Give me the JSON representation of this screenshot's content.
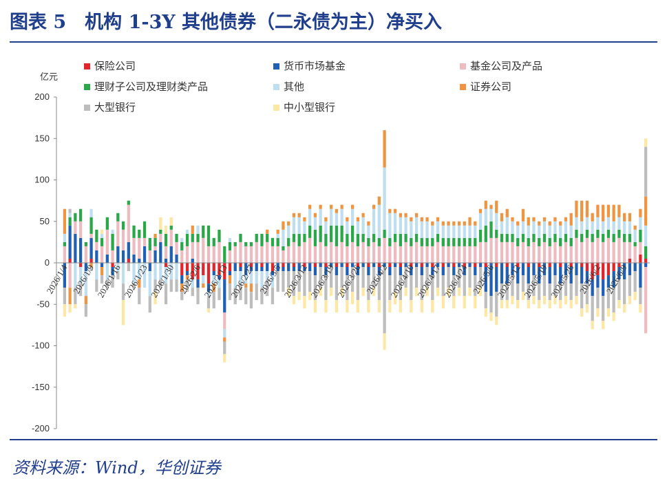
{
  "header": {
    "title": "图表 5　机构 1-3Y 其他债券（二永债为主）净买入"
  },
  "footer": {
    "source": "资料来源：Wind，华创证券"
  },
  "chart_data": {
    "type": "bar",
    "stacked": true,
    "unit_label": "亿元",
    "ylim": [
      -200,
      200
    ],
    "yticks": [
      -200,
      -150,
      -100,
      -50,
      0,
      50,
      100,
      150,
      200
    ],
    "grid": false,
    "legend_position": "top",
    "x_tick_labels": [
      "2026/1/4",
      "2026/1/9",
      "2026/1/16",
      "2026/1/23",
      "2026/1/30",
      "2026/2/6",
      "2026/2/13",
      "2026/2/27",
      "2026/3/5",
      "2026/3/12",
      "2026/3/19",
      "2026/3/26",
      "2026/4/2",
      "2026/4/10",
      "2026/4/17",
      "2026/4/24",
      "2026/5/6",
      "2026/5/12",
      "2026/5/19",
      "2026/5/26",
      "2026/6/2",
      "2026/6/9"
    ],
    "x_tick_index": [
      0,
      5,
      10,
      15,
      20,
      25,
      30,
      35,
      40,
      45,
      50,
      55,
      60,
      65,
      70,
      75,
      80,
      85,
      90,
      95,
      100,
      105
    ],
    "num_days": 110,
    "series": [
      {
        "name": "保险公司",
        "color": "#e2252b"
      },
      {
        "name": "货币市场基金",
        "color": "#1f5fb4"
      },
      {
        "name": "基金公司及产品",
        "color": "#eebcc0"
      },
      {
        "name": "理财子公司及理财类产品",
        "color": "#2aa748"
      },
      {
        "name": "其他",
        "color": "#bfdff0"
      },
      {
        "name": "证券公司",
        "color": "#ef9440"
      },
      {
        "name": "大型银行",
        "color": "#bdbdbd"
      },
      {
        "name": "中小型银行",
        "color": "#fde7a4"
      }
    ],
    "series_values_note": "values per day in 亿元, order follows series[] above",
    "values": [
      [
        0,
        -30,
        20,
        5,
        10,
        30,
        -20,
        -15
      ],
      [
        5,
        40,
        -30,
        10,
        5,
        -20,
        5,
        -10
      ],
      [
        0,
        35,
        15,
        10,
        -30,
        0,
        -20,
        -5
      ],
      [
        -5,
        30,
        20,
        15,
        -20,
        0,
        -15,
        0
      ],
      [
        0,
        -10,
        20,
        5,
        -30,
        -10,
        -15,
        0
      ],
      [
        5,
        25,
        5,
        20,
        10,
        -5,
        -5,
        0
      ],
      [
        0,
        15,
        10,
        15,
        -20,
        0,
        -15,
        0
      ],
      [
        0,
        -5,
        20,
        10,
        5,
        -10,
        -10,
        5
      ],
      [
        0,
        10,
        30,
        15,
        -20,
        0,
        -10,
        0
      ],
      [
        -5,
        -10,
        15,
        20,
        5,
        0,
        -15,
        0
      ],
      [
        0,
        20,
        30,
        10,
        -10,
        0,
        -10,
        0
      ],
      [
        0,
        15,
        25,
        10,
        -25,
        0,
        -20,
        -30
      ],
      [
        5,
        20,
        45,
        5,
        0,
        0,
        -10,
        0
      ],
      [
        0,
        10,
        20,
        15,
        -25,
        0,
        -5,
        0
      ],
      [
        0,
        5,
        25,
        10,
        -20,
        -10,
        -20,
        0
      ],
      [
        0,
        20,
        10,
        20,
        -30,
        0,
        0,
        0
      ],
      [
        0,
        -10,
        15,
        15,
        -30,
        0,
        -20,
        0
      ],
      [
        0,
        15,
        5,
        10,
        -20,
        5,
        -15,
        -15
      ],
      [
        0,
        25,
        10,
        5,
        -20,
        0,
        -10,
        15
      ],
      [
        -5,
        5,
        15,
        15,
        -20,
        0,
        -25,
        10
      ],
      [
        0,
        20,
        20,
        5,
        -20,
        0,
        -15,
        10
      ],
      [
        0,
        10,
        15,
        10,
        -20,
        0,
        -15,
        0
      ],
      [
        -15,
        -10,
        15,
        10,
        5,
        -10,
        -10,
        0
      ],
      [
        -10,
        -5,
        20,
        15,
        5,
        -5,
        -15,
        0
      ],
      [
        -20,
        5,
        20,
        10,
        -10,
        10,
        -10,
        0
      ],
      [
        -20,
        -10,
        25,
        10,
        10,
        0,
        -20,
        0
      ],
      [
        -15,
        0,
        30,
        15,
        -10,
        -5,
        0,
        0
      ],
      [
        -25,
        -10,
        20,
        25,
        -5,
        0,
        -15,
        -5
      ],
      [
        -10,
        -5,
        20,
        10,
        -10,
        -10,
        -20,
        0
      ],
      [
        -15,
        -5,
        25,
        15,
        -10,
        0,
        -15,
        0
      ],
      [
        -20,
        -40,
        -20,
        20,
        -10,
        -5,
        -15,
        -10
      ],
      [
        -10,
        -5,
        15,
        10,
        5,
        -10,
        -20,
        0
      ],
      [
        0,
        -10,
        20,
        5,
        -20,
        0,
        -20,
        0
      ],
      [
        -5,
        -5,
        25,
        10,
        -15,
        0,
        -20,
        0
      ],
      [
        0,
        -15,
        20,
        5,
        -10,
        -5,
        -20,
        0
      ],
      [
        -5,
        -5,
        20,
        5,
        -15,
        -10,
        -20,
        0
      ],
      [
        0,
        -10,
        25,
        10,
        -15,
        0,
        -20,
        0
      ],
      [
        -5,
        -5,
        20,
        15,
        -20,
        0,
        -20,
        0
      ],
      [
        0,
        -10,
        25,
        10,
        -10,
        5,
        -20,
        0
      ],
      [
        -10,
        -5,
        20,
        10,
        -15,
        0,
        -20,
        0
      ],
      [
        0,
        -10,
        20,
        10,
        5,
        5,
        -25,
        0
      ],
      [
        -5,
        -5,
        15,
        5,
        20,
        10,
        -25,
        0
      ],
      [
        0,
        -10,
        20,
        10,
        15,
        5,
        -20,
        -10
      ],
      [
        -5,
        -5,
        25,
        10,
        20,
        5,
        -30,
        -10
      ],
      [
        0,
        -10,
        20,
        15,
        20,
        5,
        -25,
        -10
      ],
      [
        -5,
        -5,
        25,
        10,
        15,
        5,
        -30,
        -15
      ],
      [
        0,
        -10,
        30,
        15,
        20,
        5,
        -25,
        -10
      ],
      [
        -5,
        -10,
        20,
        20,
        15,
        5,
        -30,
        -15
      ],
      [
        0,
        -5,
        25,
        20,
        20,
        5,
        -25,
        -10
      ],
      [
        -5,
        -10,
        20,
        15,
        15,
        5,
        -30,
        -15
      ],
      [
        0,
        -5,
        25,
        20,
        20,
        5,
        -25,
        -10
      ],
      [
        -5,
        -10,
        20,
        25,
        15,
        5,
        -30,
        -15
      ],
      [
        0,
        -5,
        25,
        20,
        20,
        5,
        -25,
        -10
      ],
      [
        -5,
        -10,
        20,
        15,
        15,
        5,
        -30,
        -15
      ],
      [
        0,
        -5,
        25,
        20,
        20,
        5,
        -30,
        -15
      ],
      [
        -5,
        -10,
        20,
        15,
        15,
        5,
        -30,
        -15
      ],
      [
        0,
        -5,
        25,
        10,
        20,
        5,
        -25,
        -10
      ],
      [
        -5,
        -10,
        20,
        10,
        15,
        5,
        -30,
        -15
      ],
      [
        0,
        -5,
        25,
        10,
        30,
        5,
        -25,
        -10
      ],
      [
        -5,
        -10,
        20,
        10,
        40,
        10,
        -30,
        -15
      ],
      [
        0,
        -5,
        30,
        10,
        75,
        45,
        -80,
        -20
      ],
      [
        -5,
        -10,
        20,
        10,
        30,
        5,
        -30,
        -15
      ],
      [
        0,
        -5,
        25,
        10,
        25,
        5,
        -30,
        -15
      ],
      [
        -5,
        -10,
        20,
        15,
        20,
        5,
        -30,
        -15
      ],
      [
        0,
        -5,
        25,
        10,
        20,
        5,
        -25,
        -10
      ],
      [
        -5,
        -10,
        20,
        10,
        20,
        5,
        -30,
        -15
      ],
      [
        0,
        -5,
        25,
        10,
        20,
        5,
        -25,
        -10
      ],
      [
        -5,
        -10,
        20,
        10,
        20,
        5,
        -30,
        -15
      ],
      [
        0,
        -5,
        20,
        10,
        20,
        5,
        -25,
        -10
      ],
      [
        -5,
        -10,
        20,
        10,
        15,
        5,
        -30,
        -15
      ],
      [
        0,
        -5,
        25,
        10,
        15,
        5,
        -25,
        -10
      ],
      [
        -5,
        -10,
        20,
        10,
        15,
        5,
        -25,
        -15
      ],
      [
        0,
        -5,
        20,
        10,
        15,
        5,
        -25,
        -10
      ],
      [
        -5,
        -10,
        20,
        10,
        15,
        5,
        -25,
        -15
      ],
      [
        0,
        -5,
        20,
        10,
        15,
        5,
        -25,
        -10
      ],
      [
        -5,
        -10,
        20,
        10,
        15,
        5,
        -25,
        -15
      ],
      [
        0,
        -5,
        20,
        10,
        15,
        10,
        -25,
        -10
      ],
      [
        -5,
        -10,
        20,
        10,
        15,
        5,
        -25,
        -15
      ],
      [
        0,
        -5,
        25,
        15,
        20,
        5,
        -25,
        -10
      ],
      [
        -5,
        -30,
        25,
        20,
        20,
        10,
        -20,
        -10
      ],
      [
        0,
        -40,
        30,
        20,
        15,
        5,
        -20,
        -10
      ],
      [
        -5,
        -30,
        30,
        10,
        20,
        15,
        -30,
        -10
      ],
      [
        0,
        -25,
        25,
        10,
        15,
        10,
        -20,
        -10
      ],
      [
        -5,
        -20,
        25,
        10,
        20,
        10,
        -20,
        -10
      ],
      [
        0,
        -15,
        25,
        10,
        15,
        5,
        -25,
        -10
      ],
      [
        -5,
        -20,
        20,
        10,
        15,
        5,
        -20,
        -10
      ],
      [
        0,
        -15,
        25,
        10,
        15,
        15,
        -20,
        -10
      ],
      [
        -5,
        -20,
        20,
        10,
        15,
        10,
        -20,
        -10
      ],
      [
        0,
        -15,
        25,
        10,
        15,
        5,
        -25,
        -10
      ],
      [
        -5,
        -20,
        20,
        10,
        15,
        5,
        -20,
        -10
      ],
      [
        0,
        -15,
        25,
        10,
        15,
        5,
        -25,
        -10
      ],
      [
        -5,
        -20,
        20,
        10,
        15,
        5,
        -20,
        -10
      ],
      [
        0,
        -15,
        25,
        10,
        15,
        5,
        -25,
        -10
      ],
      [
        -5,
        -20,
        20,
        10,
        15,
        5,
        -20,
        -10
      ],
      [
        0,
        -15,
        25,
        10,
        15,
        5,
        -25,
        -10
      ],
      [
        -5,
        -20,
        20,
        10,
        15,
        15,
        -20,
        -10
      ],
      [
        0,
        -15,
        30,
        10,
        15,
        20,
        -25,
        -10
      ],
      [
        -5,
        -20,
        25,
        10,
        15,
        25,
        -30,
        -10
      ],
      [
        -10,
        -15,
        30,
        10,
        15,
        20,
        -25,
        -10
      ],
      [
        -20,
        -20,
        25,
        10,
        15,
        10,
        -30,
        -10
      ],
      [
        -15,
        -15,
        30,
        10,
        15,
        15,
        -25,
        -10
      ],
      [
        -20,
        -20,
        25,
        10,
        15,
        20,
        -30,
        -10
      ],
      [
        -15,
        -15,
        30,
        10,
        15,
        15,
        -25,
        -10
      ],
      [
        -10,
        -20,
        25,
        10,
        15,
        20,
        -30,
        -10
      ],
      [
        -5,
        -15,
        30,
        10,
        15,
        15,
        -25,
        -10
      ],
      [
        0,
        -20,
        25,
        10,
        15,
        10,
        -30,
        -10
      ],
      [
        5,
        -15,
        20,
        10,
        15,
        10,
        -25,
        -10
      ],
      [
        0,
        -10,
        20,
        5,
        15,
        5,
        -25,
        -10
      ],
      [
        10,
        -30,
        15,
        15,
        15,
        10,
        -20,
        -10
      ],
      [
        5,
        -5,
        -80,
        15,
        25,
        35,
        60,
        10
      ]
    ]
  }
}
